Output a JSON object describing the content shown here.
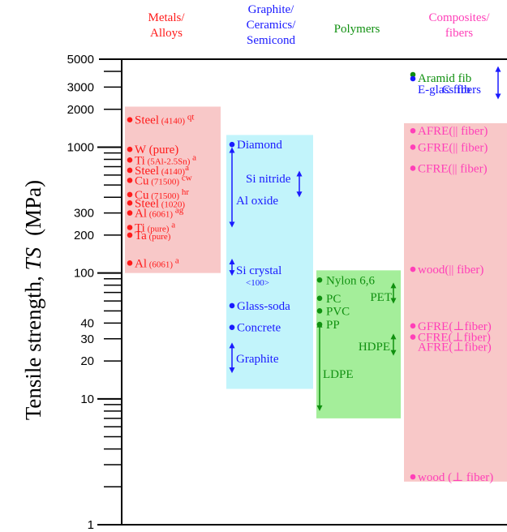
{
  "chart_data": {
    "type": "scatter",
    "title": "",
    "ylabel": "Tensile strength, TS (MPa)",
    "ylabel_parts": {
      "before": "Tensile strength, ",
      "italic": "TS",
      "after": "(MPa)"
    },
    "yscale": "log",
    "ylim": [
      1,
      5000
    ],
    "yticks": [
      5000,
      3000,
      2000,
      1000,
      300,
      200,
      100,
      40,
      30,
      20,
      10,
      1
    ],
    "yticks_display": [
      "5000",
      "3000",
      "2000",
      "1000",
      "300",
      "200",
      "100",
      "40",
      "30",
      "20",
      "10",
      "1"
    ],
    "colors": {
      "metals": "#ff1a1a",
      "metals_bg": "#f8c8c8",
      "ceramics": "#1a1aff",
      "ceramics_bg": "#c2f4fb",
      "polymers": "#109010",
      "polymers_bg": "#a4ee9a",
      "composites": "#ff3fb8",
      "composites_bg": "#f8c8c8"
    },
    "groups": [
      {
        "id": "metals",
        "header": [
          "Metals/",
          "Alloys"
        ],
        "range": [
          100,
          2100
        ],
        "points": [
          {
            "label": "Steel",
            "sub": " (4140)",
            "sup": " qt",
            "y": 1650
          },
          {
            "label": "W (pure)",
            "sub": "",
            "sup": "",
            "y": 960
          },
          {
            "label": "Ti",
            "sub": " (5Al-2.5Sn)",
            "sup": " a",
            "y": 790
          },
          {
            "label": "Steel",
            "sub": " (4140)",
            "sup": "a",
            "y": 655
          },
          {
            "label": "Cu",
            "sub": " (71500)",
            "sup": " cw",
            "y": 545
          },
          {
            "label": "Cu",
            "sub": " (71500)",
            "sup": " hr",
            "y": 420
          },
          {
            "label": "Steel",
            "sub": " (1020)",
            "sup": "",
            "y": 360
          },
          {
            "label": "Al",
            "sub": " (6061)",
            "sup": " ag",
            "y": 300
          },
          {
            "label": "Ti",
            "sub": " (pure)",
            "sup": " a",
            "y": 230
          },
          {
            "label": "Ta",
            "sub": " (pure)",
            "sup": "",
            "y": 200
          },
          {
            "label": "Al",
            "sub": " (6061)",
            "sup": " a",
            "y": 120
          }
        ]
      },
      {
        "id": "ceramics",
        "header": [
          "Graphite/",
          "Ceramics/",
          "Semicond"
        ],
        "range": [
          12,
          1250
        ],
        "points": [
          {
            "label": "Diamond",
            "sub": "",
            "sup": "",
            "y": 1050
          },
          {
            "label": "Glass-soda",
            "sub": "",
            "sup": "",
            "y": 55
          },
          {
            "label": "Concrete",
            "sub": "",
            "sup": "",
            "y": 37
          }
        ],
        "ranged": [
          {
            "label": "Si nitride",
            "lo": 400,
            "hi": 650
          },
          {
            "label": "Al oxide",
            "lo": 230,
            "hi": 1000
          },
          {
            "label": "Si crystal",
            "note": "<100>",
            "lo": 95,
            "hi": 130
          },
          {
            "label": "Graphite",
            "lo": 16,
            "hi": 28
          }
        ]
      },
      {
        "id": "polymers",
        "header": [
          "Polymers"
        ],
        "range": [
          7,
          105
        ],
        "points": [
          {
            "label": "Nylon 6,6",
            "sub": "",
            "sup": "",
            "y": 88
          },
          {
            "label": "PC",
            "sub": "",
            "sup": "",
            "y": 63
          },
          {
            "label": "PVC",
            "sub": "",
            "sup": "",
            "y": 50
          },
          {
            "label": "PP",
            "sub": "",
            "sup": "",
            "y": 39
          }
        ],
        "ranged": [
          {
            "label": "PET",
            "lo": 57,
            "hi": 84
          },
          {
            "label": "HDPE",
            "lo": 22,
            "hi": 33
          },
          {
            "label": "LDPE",
            "lo": 8,
            "hi": 41
          }
        ]
      },
      {
        "id": "composites",
        "header": [
          "Composites/",
          "fibers"
        ],
        "range": [
          2.2,
          1550
        ],
        "points": [
          {
            "label": "C fibers",
            "sub": "",
            "sup": "",
            "y": 4000
          },
          {
            "label": "Aramid fib",
            "sub": "",
            "sup": "",
            "y": 3400
          },
          {
            "label": "E-glass fib",
            "sub": "",
            "sup": "",
            "y": 3100
          },
          {
            "label": "AFRE(|| fiber)",
            "sub": "",
            "sup": "",
            "y": 1350
          },
          {
            "label": "GFRE(|| fiber)",
            "sub": "",
            "sup": "",
            "y": 1000
          },
          {
            "label": "CFRE(|| fiber)",
            "sub": "",
            "sup": "",
            "y": 680
          },
          {
            "label": "wood(|| fiber)",
            "sub": "",
            "sup": "",
            "y": 107
          },
          {
            "label": "GFRE(⊥fiber)",
            "sub": "",
            "sup": "",
            "y": 38
          },
          {
            "label": "CFRE(⊥fiber)",
            "sub": "",
            "sup": "",
            "y": 31
          },
          {
            "label": "AFRE(⊥fiber)",
            "sub": "",
            "sup": "",
            "y": 26
          },
          {
            "label": "wood (⊥ fiber)",
            "sub": "",
            "sup": "",
            "y": 2.4
          }
        ],
        "ranged": [
          {
            "label": "C/Aramid/E-glass range",
            "lo": 2400,
            "hi": 4400
          }
        ]
      }
    ]
  }
}
